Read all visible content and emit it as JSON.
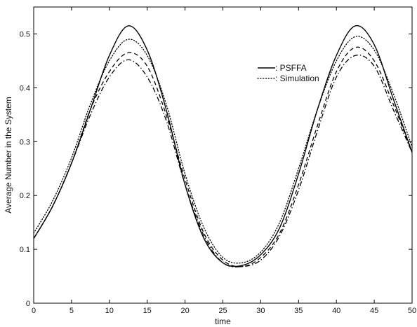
{
  "chart_data": {
    "type": "line",
    "title": "",
    "xlabel": "time",
    "ylabel": "Average Number in the System",
    "xlim": [
      0,
      50
    ],
    "ylim": [
      0,
      0.55
    ],
    "xticks": [
      0,
      5,
      10,
      15,
      20,
      25,
      30,
      35,
      40,
      45,
      50
    ],
    "yticks": [
      0,
      0.1,
      0.2,
      0.3,
      0.4,
      0.5
    ],
    "xtick_labels": [
      "0",
      "5",
      "10",
      "15",
      "20",
      "25",
      "30",
      "35",
      "40",
      "45",
      "50"
    ],
    "ytick_labels": [
      "0",
      "0.1",
      "0.2",
      "0.3",
      "0.4",
      "0.5"
    ],
    "grid": false,
    "legend_position": "upper-right",
    "x": [
      0,
      2.5,
      5,
      7.5,
      10,
      12.5,
      15,
      17.5,
      20,
      22.5,
      25,
      27.5,
      30,
      32.5,
      35,
      37.5,
      40,
      42.5,
      45,
      47.5,
      50
    ],
    "series": [
      {
        "name": ": PSFFA",
        "style": "solid",
        "color": "#000000",
        "values": [
          0.12,
          0.18,
          0.26,
          0.36,
          0.46,
          0.515,
          0.47,
          0.36,
          0.22,
          0.12,
          0.075,
          0.07,
          0.09,
          0.14,
          0.24,
          0.36,
          0.46,
          0.515,
          0.48,
          0.38,
          0.28
        ]
      },
      {
        "name": ": Simulation",
        "style": "dotted",
        "color": "#000000",
        "values": [
          0.13,
          0.19,
          0.27,
          0.37,
          0.45,
          0.49,
          0.46,
          0.37,
          0.24,
          0.14,
          0.085,
          0.075,
          0.095,
          0.15,
          0.25,
          0.36,
          0.45,
          0.495,
          0.47,
          0.39,
          0.29
        ]
      },
      {
        "style": "dashed",
        "color": "#000000",
        "values": [
          0.12,
          0.18,
          0.26,
          0.36,
          0.43,
          0.465,
          0.44,
          0.35,
          0.23,
          0.13,
          0.08,
          0.068,
          0.085,
          0.13,
          0.22,
          0.33,
          0.43,
          0.475,
          0.45,
          0.37,
          0.28
        ]
      },
      {
        "style": "dashdot",
        "color": "#000000",
        "values": [
          0.12,
          0.18,
          0.26,
          0.35,
          0.42,
          0.452,
          0.42,
          0.34,
          0.22,
          0.125,
          0.075,
          0.068,
          0.08,
          0.125,
          0.21,
          0.32,
          0.42,
          0.46,
          0.44,
          0.36,
          0.28
        ]
      }
    ]
  }
}
